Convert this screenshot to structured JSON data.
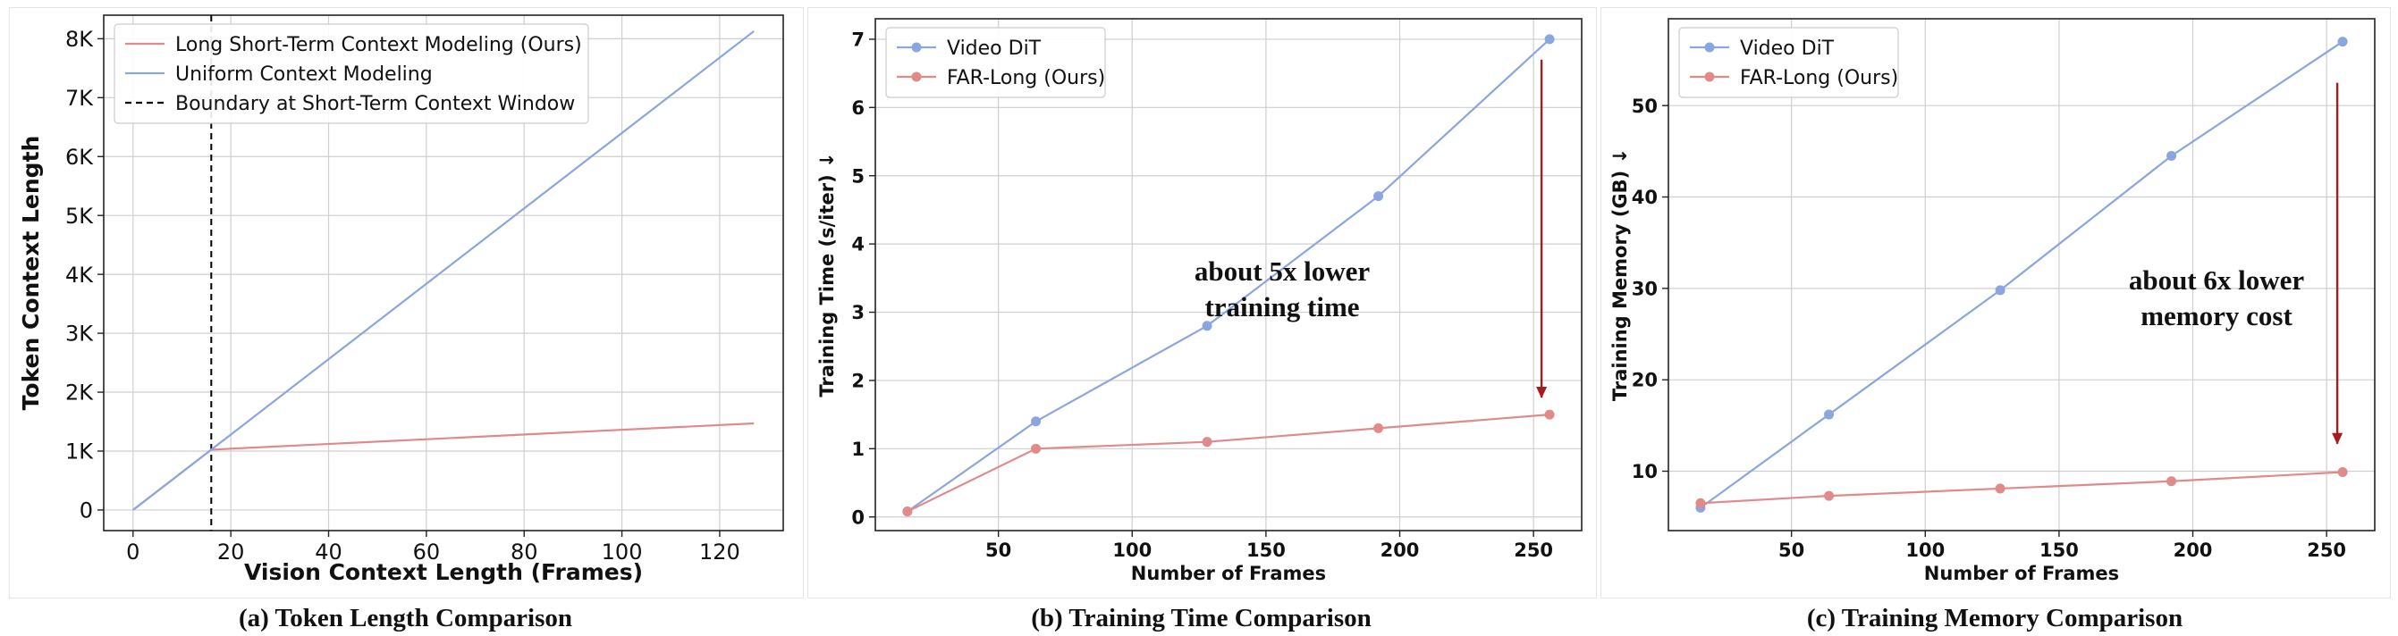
{
  "panels": [
    {
      "caption": "(a) Token Length Comparison",
      "chart_data": {
        "type": "line",
        "xlabel": "Vision Context Length (Frames)",
        "ylabel": "Token Context Length",
        "xlim": [
          -6,
          133
        ],
        "ylim": [
          -350,
          8400
        ],
        "xticks": [
          0,
          20,
          40,
          60,
          80,
          100,
          120
        ],
        "yticks": [
          0,
          1000,
          2000,
          3000,
          4000,
          5000,
          6000,
          7000,
          8000
        ],
        "ytick_labels": [
          "0",
          "1K",
          "2K",
          "3K",
          "4K",
          "5K",
          "6K",
          "7K",
          "8K"
        ],
        "grid": true,
        "legend_position": "top-left",
        "series": [
          {
            "name": "Long Short-Term Context Modeling (Ours)",
            "color": "#e08a8a",
            "markers": false,
            "x": [
              0,
              16,
              127
            ],
            "y": [
              0,
              1024,
              1470
            ]
          },
          {
            "name": "Uniform Context Modeling",
            "color": "#8aa6e0",
            "markers": false,
            "x": [
              0,
              127
            ],
            "y": [
              0,
              8128
            ]
          }
        ],
        "vline": {
          "name": "Boundary at Short-Term Context Window",
          "x": 16,
          "color": "#000000"
        }
      }
    },
    {
      "caption": "(b) Training Time Comparison",
      "chart_data": {
        "type": "line",
        "xlabel": "Number of Frames",
        "ylabel": "Training Time (s/iter) ↓",
        "xlim": [
          4,
          268
        ],
        "ylim": [
          -0.2,
          7.3
        ],
        "xticks": [
          50,
          100,
          150,
          200,
          250
        ],
        "yticks": [
          0,
          1,
          2,
          3,
          4,
          5,
          6,
          7
        ],
        "grid": true,
        "legend_position": "top-left",
        "series": [
          {
            "name": "Video DiT",
            "color": "#8aa6e0",
            "markers": true,
            "x": [
              16,
              64,
              128,
              192,
              256
            ],
            "y": [
              0.08,
              1.4,
              2.8,
              4.7,
              7.0
            ]
          },
          {
            "name": "FAR-Long (Ours)",
            "color": "#e08a8a",
            "markers": true,
            "x": [
              16,
              64,
              128,
              192,
              256
            ],
            "y": [
              0.08,
              1.0,
              1.1,
              1.3,
              1.5
            ]
          }
        ],
        "annotation": {
          "lines": [
            "about 5x lower",
            "training time"
          ],
          "arrow_from": 6.7,
          "arrow_to": 1.75,
          "arrow_x": 253
        }
      }
    },
    {
      "caption": "(c) Training Memory Comparison",
      "chart_data": {
        "type": "line",
        "xlabel": "Number of Frames",
        "ylabel": "Training Memory (GB) ↓",
        "xlim": [
          4,
          268
        ],
        "ylim": [
          3.5,
          59.5
        ],
        "xticks": [
          50,
          100,
          150,
          200,
          250
        ],
        "yticks": [
          10,
          20,
          30,
          40,
          50
        ],
        "grid": true,
        "legend_position": "top-left",
        "series": [
          {
            "name": "Video DiT",
            "color": "#8aa6e0",
            "markers": true,
            "x": [
              16,
              64,
              128,
              192,
              256
            ],
            "y": [
              6.0,
              16.2,
              29.8,
              44.5,
              57.0
            ]
          },
          {
            "name": "FAR-Long (Ours)",
            "color": "#e08a8a",
            "markers": true,
            "x": [
              16,
              64,
              128,
              192,
              256
            ],
            "y": [
              6.5,
              7.3,
              8.1,
              8.9,
              9.9
            ]
          }
        ],
        "annotation": {
          "lines": [
            "about 6x lower",
            "memory cost"
          ],
          "arrow_from": 52.5,
          "arrow_to": 13.0,
          "arrow_x": 254
        }
      }
    }
  ]
}
